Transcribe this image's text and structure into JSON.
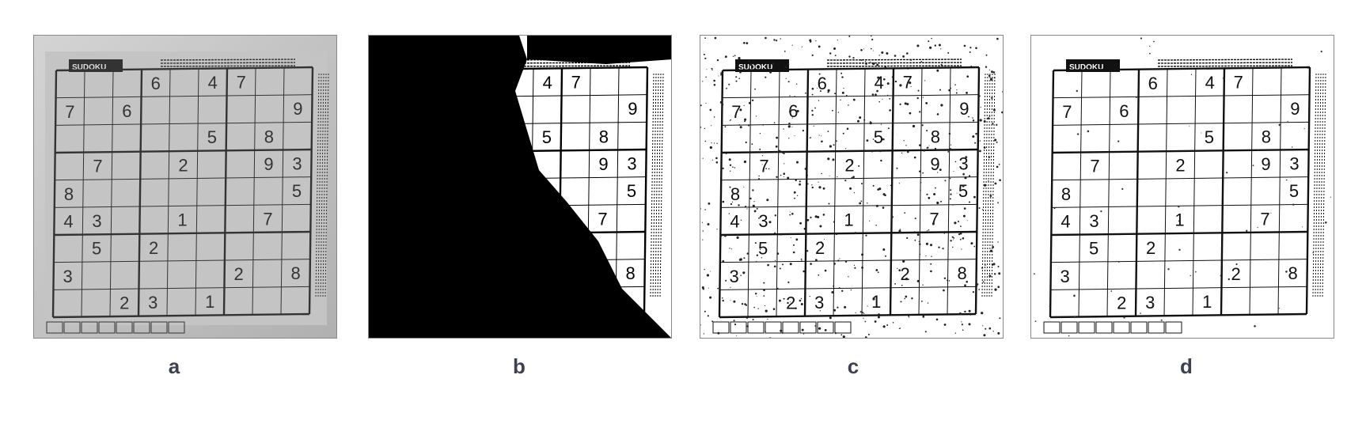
{
  "panels": [
    {
      "id": "a",
      "caption": "a",
      "rendering": "grayscale"
    },
    {
      "id": "b",
      "caption": "b",
      "rendering": "global-threshold"
    },
    {
      "id": "c",
      "caption": "c",
      "rendering": "noisy-binarized"
    },
    {
      "id": "d",
      "caption": "d",
      "rendering": "clean-binarized"
    }
  ],
  "sudoku": {
    "title": "SUDOKU",
    "givens": [
      {
        "r": 0,
        "c": 3,
        "v": "6"
      },
      {
        "r": 0,
        "c": 5,
        "v": "4"
      },
      {
        "r": 0,
        "c": 6,
        "v": "7"
      },
      {
        "r": 1,
        "c": 0,
        "v": "7"
      },
      {
        "r": 1,
        "c": 2,
        "v": "6"
      },
      {
        "r": 1,
        "c": 8,
        "v": "9"
      },
      {
        "r": 2,
        "c": 5,
        "v": "5"
      },
      {
        "r": 2,
        "c": 7,
        "v": "8"
      },
      {
        "r": 3,
        "c": 1,
        "v": "7"
      },
      {
        "r": 3,
        "c": 4,
        "v": "2"
      },
      {
        "r": 3,
        "c": 7,
        "v": "9"
      },
      {
        "r": 3,
        "c": 8,
        "v": "3"
      },
      {
        "r": 4,
        "c": 0,
        "v": "8"
      },
      {
        "r": 4,
        "c": 8,
        "v": "5"
      },
      {
        "r": 5,
        "c": 0,
        "v": "4"
      },
      {
        "r": 5,
        "c": 1,
        "v": "3"
      },
      {
        "r": 5,
        "c": 4,
        "v": "1"
      },
      {
        "r": 5,
        "c": 7,
        "v": "7"
      },
      {
        "r": 6,
        "c": 1,
        "v": "5"
      },
      {
        "r": 6,
        "c": 3,
        "v": "2"
      },
      {
        "r": 7,
        "c": 0,
        "v": "3"
      },
      {
        "r": 7,
        "c": 6,
        "v": "2"
      },
      {
        "r": 7,
        "c": 8,
        "v": "8"
      },
      {
        "r": 8,
        "c": 2,
        "v": "2"
      },
      {
        "r": 8,
        "c": 3,
        "v": "3"
      },
      {
        "r": 8,
        "c": 5,
        "v": "1"
      }
    ]
  }
}
